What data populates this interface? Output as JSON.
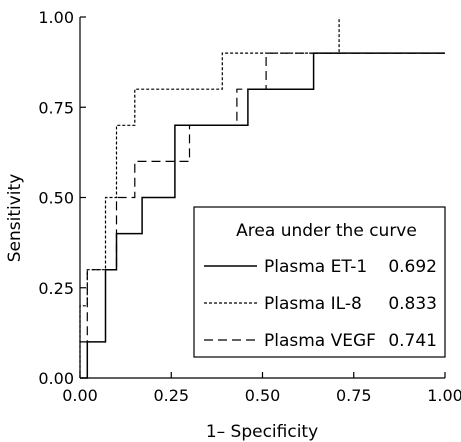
{
  "chart_data": {
    "type": "line",
    "xlabel": "1– Specificity",
    "ylabel": "Sensitivity",
    "xlim": [
      0,
      1
    ],
    "ylim": [
      0,
      1
    ],
    "x_ticks": [
      "0.00",
      "0.25",
      "0.50",
      "0.75",
      "1.00"
    ],
    "y_ticks": [
      "0.00",
      "0.25",
      "0.50",
      "0.75",
      "1.00"
    ],
    "grid": false,
    "legend": {
      "title": "Area under the curve",
      "placement": "bottom-right",
      "entries": [
        {
          "label": "Plasma ET-1",
          "value": "0.692",
          "style": "solid"
        },
        {
          "label": "Plasma IL-8",
          "value": "0.833",
          "style": "dotted-dash"
        },
        {
          "label": "Plasma VEGF",
          "value": "0.741",
          "style": "long-dash"
        }
      ]
    },
    "series": [
      {
        "name": "Plasma ET-1",
        "style": "solid",
        "x": [
          0,
          0.02,
          0.02,
          0.07,
          0.07,
          0.1,
          0.1,
          0.17,
          0.17,
          0.26,
          0.26,
          0.46,
          0.46,
          0.64,
          0.64,
          1.0
        ],
        "y": [
          0,
          0,
          0.1,
          0.1,
          0.3,
          0.3,
          0.4,
          0.4,
          0.5,
          0.5,
          0.7,
          0.7,
          0.8,
          0.8,
          0.9,
          0.9
        ]
      },
      {
        "name": "Plasma IL-8",
        "style": "dotted-dash",
        "x": [
          0,
          0,
          0.02,
          0.02,
          0.07,
          0.07,
          0.1,
          0.1,
          0.15,
          0.15,
          0.39,
          0.39,
          0.71,
          0.71
        ],
        "y": [
          0,
          0.2,
          0.2,
          0.3,
          0.3,
          0.5,
          0.5,
          0.7,
          0.7,
          0.8,
          0.8,
          0.9,
          0.9,
          1.0
        ]
      },
      {
        "name": "Plasma VEGF",
        "style": "long-dash",
        "x": [
          0,
          0.02,
          0.02,
          0.1,
          0.1,
          0.15,
          0.15,
          0.3,
          0.3,
          0.43,
          0.43,
          0.51,
          0.51,
          1.0
        ],
        "y": [
          0.1,
          0.1,
          0.3,
          0.3,
          0.5,
          0.5,
          0.6,
          0.6,
          0.7,
          0.7,
          0.8,
          0.8,
          0.9,
          0.9
        ]
      }
    ]
  }
}
